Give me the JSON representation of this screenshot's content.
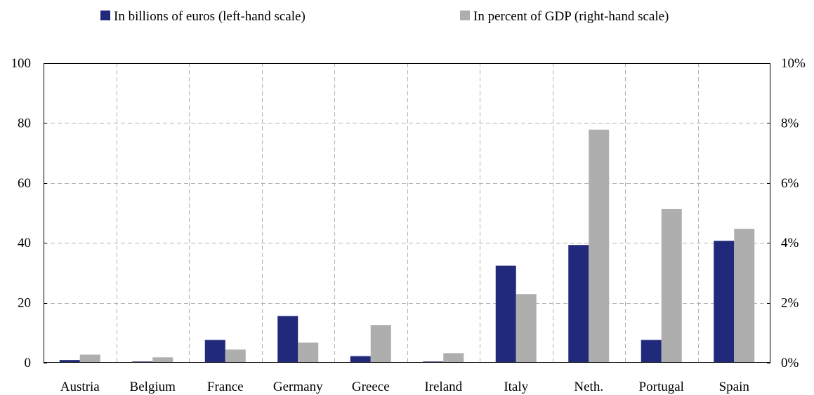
{
  "chart_data": {
    "type": "bar",
    "categories": [
      "Austria",
      "Belgium",
      "France",
      "Germany",
      "Greece",
      "Ireland",
      "Italy",
      "Neth.",
      "Portugal",
      "Spain"
    ],
    "series": [
      {
        "name": "In billions of euros (left-hand scale)",
        "axis": "left",
        "color": "#21297a",
        "values": [
          0.9,
          0.4,
          7.6,
          15.6,
          2.2,
          0.4,
          32.4,
          39.3,
          7.6,
          40.7
        ]
      },
      {
        "name": "In percent of GDP (right-hand scale)",
        "axis": "right",
        "color": "#aeaeae",
        "values": [
          0.27,
          0.18,
          0.44,
          0.67,
          1.26,
          0.32,
          2.29,
          7.78,
          5.13,
          4.47
        ]
      }
    ],
    "y_left": {
      "lim": [
        0,
        100
      ],
      "ticks": [
        0,
        20,
        40,
        60,
        80,
        100
      ],
      "tick_labels": [
        "0",
        "20",
        "40",
        "60",
        "80",
        "100"
      ]
    },
    "y_right": {
      "lim": [
        0,
        10
      ],
      "ticks": [
        0,
        2,
        4,
        6,
        8,
        10
      ],
      "tick_labels": [
        "0%",
        "2%",
        "4%",
        "6%",
        "8%",
        "10%"
      ]
    },
    "grid": true,
    "legend_position": "top"
  }
}
